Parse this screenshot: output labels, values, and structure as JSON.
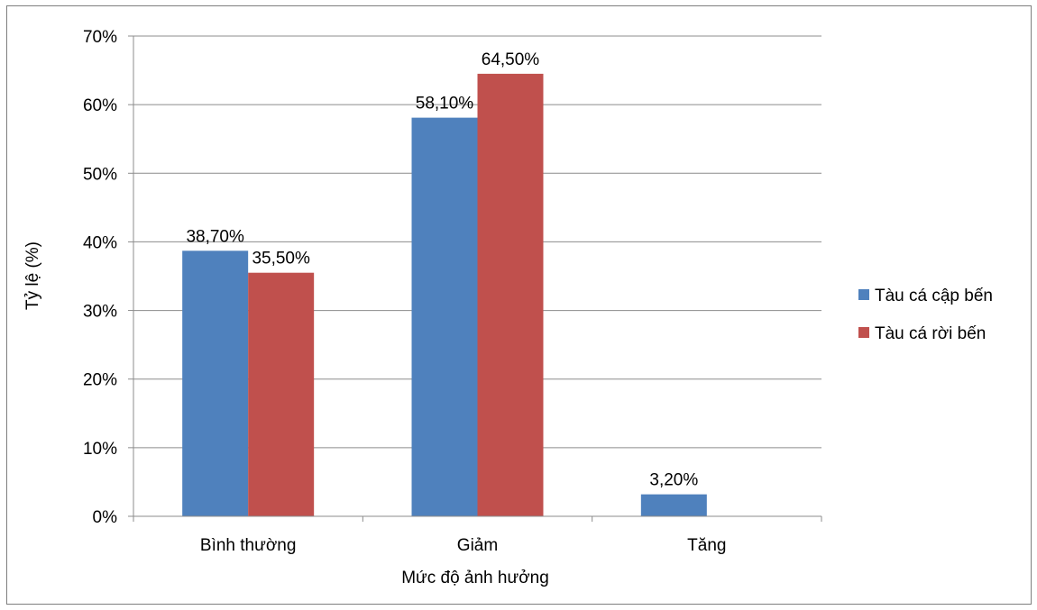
{
  "chart_data": {
    "type": "bar",
    "title": "",
    "xlabel": "Mức độ ảnh hưởng",
    "ylabel": "Tỷ lệ (%)",
    "categories": [
      "Bình thường",
      "Giảm",
      "Tăng"
    ],
    "series": [
      {
        "name": "Tàu cá cập bến",
        "color": "#4F81BD",
        "values": [
          38.7,
          58.1,
          3.2
        ],
        "labels": [
          "38,70%",
          "58,10%",
          "3,20%"
        ]
      },
      {
        "name": "Tàu cá rời bến",
        "color": "#C0504D",
        "values": [
          35.5,
          64.5,
          null
        ],
        "labels": [
          "35,50%",
          "64,50%",
          ""
        ]
      }
    ],
    "ylim": [
      0,
      70
    ],
    "yticks": [
      0,
      10,
      20,
      30,
      40,
      50,
      60,
      70
    ],
    "ytick_labels": [
      "0%",
      "10%",
      "20%",
      "30%",
      "40%",
      "50%",
      "60%",
      "70%"
    ],
    "grid": true,
    "legend_position": "right"
  }
}
